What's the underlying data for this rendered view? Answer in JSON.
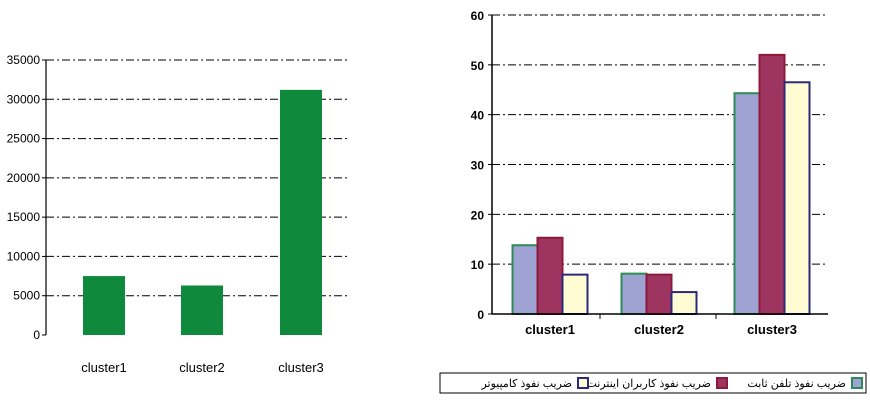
{
  "chart_data": [
    {
      "type": "bar",
      "categories": [
        "cluster1",
        "cluster2",
        "cluster3"
      ],
      "values": [
        7500,
        6300,
        31200
      ],
      "ylim": [
        0,
        35000
      ],
      "yticks": [
        "0",
        "5000",
        "10000",
        "15000",
        "20000",
        "25000",
        "30000",
        "35000"
      ],
      "grid": true,
      "colors": {
        "bar": "#0f8a3c"
      }
    },
    {
      "type": "bar",
      "categories": [
        "cluster1",
        "cluster2",
        "cluster3"
      ],
      "series": [
        {
          "name": "ضریب نفوذ تلفن ثابت",
          "values": [
            13.8,
            8.1,
            44.3
          ],
          "fill": "#9ea3d3",
          "stroke": "#2e8b57"
        },
        {
          "name": "ضریب نفوذ کاربران اینترنت",
          "values": [
            15.3,
            7.9,
            52.0
          ],
          "fill": "#9e3561",
          "stroke": "#8b1a3a"
        },
        {
          "name": "ضریب نفوذ کامپیوتر",
          "values": [
            7.9,
            4.4,
            46.5
          ],
          "fill": "#fffcd3",
          "stroke": "#2a2a7a"
        }
      ],
      "ylim": [
        0,
        60
      ],
      "yticks": [
        "0",
        "10",
        "20",
        "30",
        "40",
        "50",
        "60"
      ],
      "grid": true,
      "legend_position": "bottom"
    }
  ]
}
